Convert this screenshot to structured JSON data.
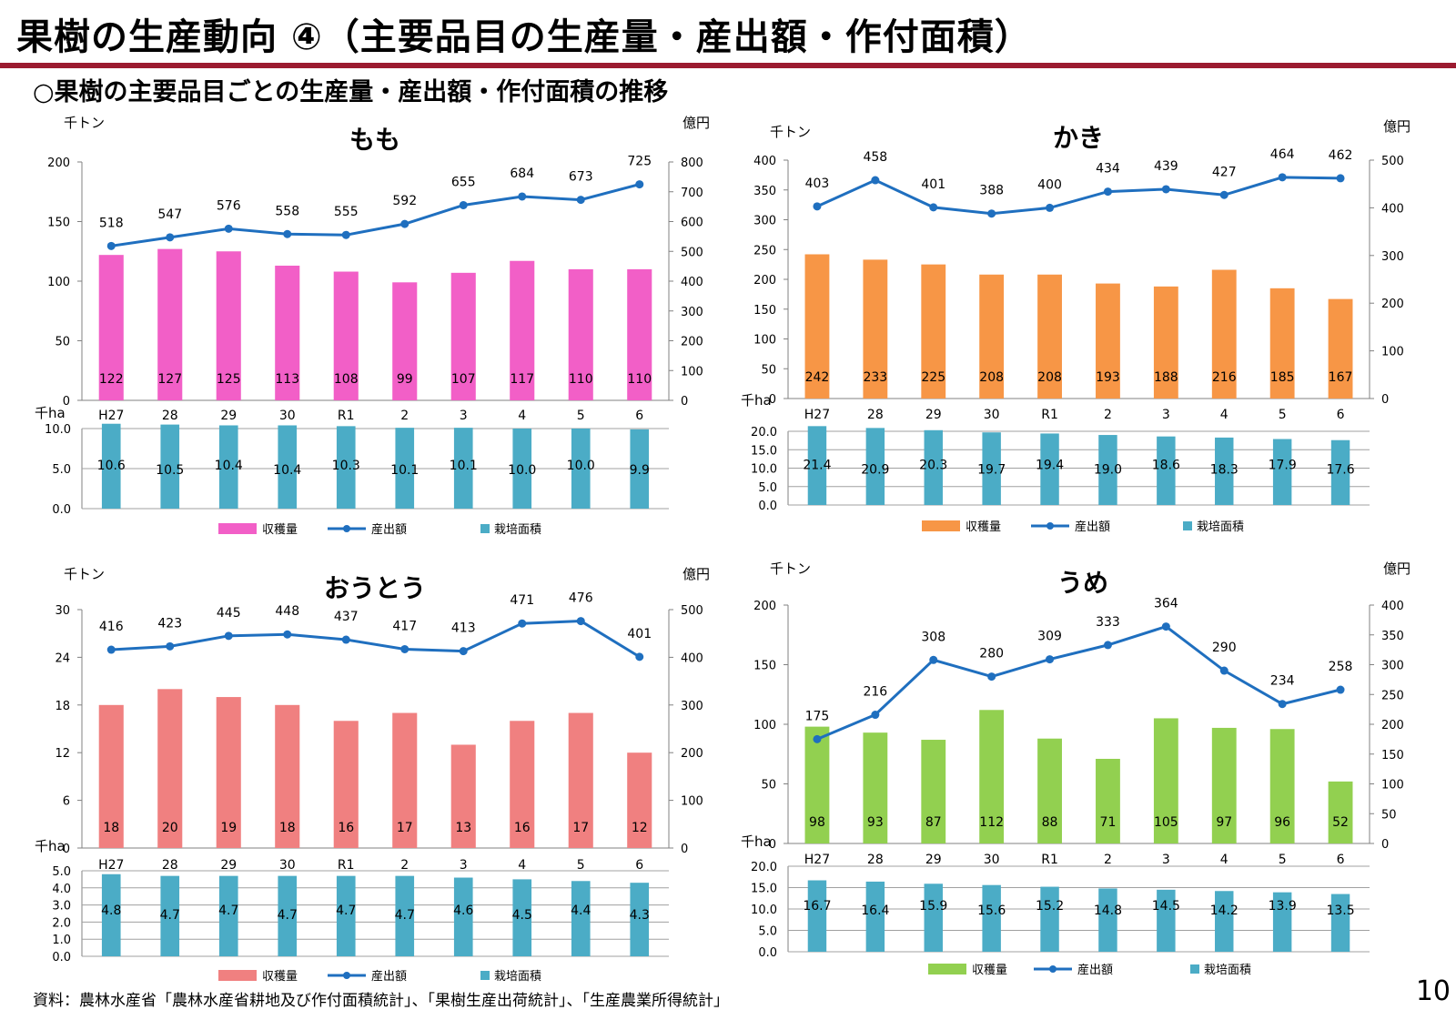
{
  "header": {
    "title": "果樹の生産動向 ④（主要品目の生産量・産出額・作付面積）",
    "subtitle": "○果樹の主要品目ごとの生産量・産出額・作付面積の推移"
  },
  "footer": {
    "source": "資料：農林水産省「農林水産省耕地及び作付面積統計」、「果樹生産出荷統計」、「生産農業所得統計」",
    "page_number": "10"
  },
  "colors": {
    "line": "#1f6fbf",
    "area_bar": "#4bacc6",
    "grid": "#808080",
    "title_rule": "#9b1b30"
  },
  "chart_data": [
    {
      "type": "bar",
      "title": "もも",
      "categories": [
        "H27",
        "28",
        "29",
        "30",
        "R1",
        "2",
        "3",
        "4",
        "5",
        "6"
      ],
      "left_unit": "千トン",
      "right_unit": "億円",
      "area_unit": "千ha",
      "series": [
        {
          "name": "収穫量",
          "axis": "left",
          "color": "#f25fc7",
          "values": [
            122,
            127,
            125,
            113,
            108,
            99,
            107,
            117,
            110,
            110
          ]
        },
        {
          "name": "産出額",
          "axis": "right",
          "color": "#1f6fbf",
          "values": [
            518,
            547,
            576,
            558,
            555,
            592,
            655,
            684,
            673,
            725
          ]
        },
        {
          "name": "栽培面積",
          "axis": "area",
          "color": "#4bacc6",
          "values": [
            10.6,
            10.5,
            10.4,
            10.4,
            10.3,
            10.1,
            10.1,
            10.0,
            10.0,
            9.9
          ]
        }
      ],
      "label_text": {
        "bar": [
          "122",
          "127",
          "125",
          "113",
          "108",
          "99",
          "107",
          "117",
          "110",
          "110"
        ],
        "line": [
          "518",
          "547",
          "576",
          "558",
          "555",
          "592",
          "655",
          "684",
          "673",
          "725"
        ],
        "area": [
          "10.6",
          "10.5",
          "10.4",
          "10.4",
          "10.3",
          "10.1",
          "10.1",
          "10.0",
          "10.0",
          "9.9"
        ]
      },
      "left_axis": {
        "ylim": [
          0,
          200
        ],
        "ticks": [
          "0",
          "50",
          "100",
          "150",
          "200"
        ]
      },
      "right_axis": {
        "ylim": [
          0,
          800
        ],
        "ticks": [
          "0",
          "100",
          "200",
          "300",
          "400",
          "500",
          "600",
          "700",
          "800"
        ]
      },
      "area_axis": {
        "ylim": [
          0,
          10
        ],
        "ticks": [
          "0.0",
          "5.0",
          "10.0"
        ]
      },
      "legend": [
        "収穫量",
        "産出額",
        "栽培面積"
      ]
    },
    {
      "type": "bar",
      "title": "かき",
      "categories": [
        "H27",
        "28",
        "29",
        "30",
        "R1",
        "2",
        "3",
        "4",
        "5",
        "6"
      ],
      "left_unit": "千トン",
      "right_unit": "億円",
      "area_unit": "千ha",
      "series": [
        {
          "name": "収穫量",
          "axis": "left",
          "color": "#f79646",
          "values": [
            242,
            233,
            225,
            208,
            208,
            193,
            188,
            216,
            185,
            167
          ]
        },
        {
          "name": "産出額",
          "axis": "right",
          "color": "#1f6fbf",
          "values": [
            403,
            458,
            401,
            388,
            400,
            434,
            439,
            427,
            464,
            462
          ]
        },
        {
          "name": "栽培面積",
          "axis": "area",
          "color": "#4bacc6",
          "values": [
            21.4,
            20.9,
            20.3,
            19.7,
            19.4,
            19.0,
            18.6,
            18.3,
            17.9,
            17.6
          ]
        }
      ],
      "label_text": {
        "bar": [
          "242",
          "233",
          "225",
          "208",
          "208",
          "193",
          "188",
          "216",
          "185",
          "167"
        ],
        "line": [
          "403",
          "458",
          "401",
          "388",
          "400",
          "434",
          "439",
          "427",
          "464",
          "462"
        ],
        "area": [
          "21.4",
          "20.9",
          "20.3",
          "19.7",
          "19.4",
          "19.0",
          "18.6",
          "18.3",
          "17.9",
          "17.6"
        ]
      },
      "left_axis": {
        "ylim": [
          0,
          400
        ],
        "ticks": [
          "0",
          "50",
          "100",
          "150",
          "200",
          "250",
          "300",
          "350",
          "400"
        ]
      },
      "right_axis": {
        "ylim": [
          0,
          500
        ],
        "ticks": [
          "0",
          "100",
          "200",
          "300",
          "400",
          "500"
        ]
      },
      "area_axis": {
        "ylim": [
          0,
          20
        ],
        "ticks": [
          "0.0",
          "5.0",
          "10.0",
          "15.0",
          "20.0"
        ]
      },
      "legend": [
        "収穫量",
        "産出額",
        "栽培面積"
      ]
    },
    {
      "type": "bar",
      "title": "おうとう",
      "categories": [
        "H27",
        "28",
        "29",
        "30",
        "R1",
        "2",
        "3",
        "4",
        "5",
        "6"
      ],
      "left_unit": "千トン",
      "right_unit": "億円",
      "area_unit": "千ha",
      "series": [
        {
          "name": "収穫量",
          "axis": "left",
          "color": "#f08080",
          "values": [
            18,
            20,
            19,
            18,
            16,
            17,
            13,
            16,
            17,
            12
          ]
        },
        {
          "name": "産出額",
          "axis": "right",
          "color": "#1f6fbf",
          "values": [
            416,
            423,
            445,
            448,
            437,
            417,
            413,
            471,
            476,
            401
          ]
        },
        {
          "name": "栽培面積",
          "axis": "area",
          "color": "#4bacc6",
          "values": [
            4.8,
            4.7,
            4.7,
            4.7,
            4.7,
            4.7,
            4.6,
            4.5,
            4.4,
            4.3
          ]
        }
      ],
      "label_text": {
        "bar": [
          "18",
          "20",
          "19",
          "18",
          "16",
          "17",
          "13",
          "16",
          "17",
          "12"
        ],
        "line": [
          "416",
          "423",
          "445",
          "448",
          "437",
          "417",
          "413",
          "471",
          "476",
          "401"
        ],
        "area": [
          "4.8",
          "4.7",
          "4.7",
          "4.7",
          "4.7",
          "4.7",
          "4.6",
          "4.5",
          "4.4",
          "4.3"
        ]
      },
      "left_axis": {
        "ylim": [
          0,
          30
        ],
        "ticks": [
          "0",
          "6",
          "12",
          "18",
          "24",
          "30"
        ]
      },
      "right_axis": {
        "ylim": [
          0,
          500
        ],
        "ticks": [
          "0",
          "100",
          "200",
          "300",
          "400",
          "500"
        ]
      },
      "area_axis": {
        "ylim": [
          0,
          5
        ],
        "ticks": [
          "0.0",
          "1.0",
          "2.0",
          "3.0",
          "4.0",
          "5.0"
        ]
      },
      "legend": [
        "収穫量",
        "産出額",
        "栽培面積"
      ]
    },
    {
      "type": "bar",
      "title": "うめ",
      "categories": [
        "H27",
        "28",
        "29",
        "30",
        "R1",
        "2",
        "3",
        "4",
        "5",
        "6"
      ],
      "left_unit": "千トン",
      "right_unit": "億円",
      "area_unit": "千ha",
      "series": [
        {
          "name": "収穫量",
          "axis": "left",
          "color": "#92d050",
          "values": [
            98,
            93,
            87,
            112,
            88,
            71,
            105,
            97,
            96,
            52
          ]
        },
        {
          "name": "産出額",
          "axis": "right",
          "color": "#1f6fbf",
          "values": [
            175,
            216,
            308,
            280,
            309,
            333,
            364,
            290,
            234,
            258
          ]
        },
        {
          "name": "栽培面積",
          "axis": "area",
          "color": "#4bacc6",
          "values": [
            16.7,
            16.4,
            15.9,
            15.6,
            15.2,
            14.8,
            14.5,
            14.2,
            13.9,
            13.5
          ]
        }
      ],
      "label_text": {
        "bar": [
          "98",
          "93",
          "87",
          "112",
          "88",
          "71",
          "105",
          "97",
          "96",
          "52"
        ],
        "line": [
          "175",
          "216",
          "308",
          "280",
          "309",
          "333",
          "364",
          "290",
          "234",
          "258"
        ],
        "area": [
          "16.7",
          "16.4",
          "15.9",
          "15.6",
          "15.2",
          "14.8",
          "14.5",
          "14.2",
          "13.9",
          "13.5"
        ]
      },
      "left_axis": {
        "ylim": [
          0,
          200
        ],
        "ticks": [
          "0",
          "50",
          "100",
          "150",
          "200"
        ]
      },
      "right_axis": {
        "ylim": [
          0,
          400
        ],
        "ticks": [
          "0",
          "50",
          "100",
          "150",
          "200",
          "250",
          "300",
          "350",
          "400"
        ]
      },
      "area_axis": {
        "ylim": [
          0,
          20
        ],
        "ticks": [
          "0.0",
          "5.0",
          "10.0",
          "15.0",
          "20.0"
        ]
      },
      "legend": [
        "収穫量",
        "産出額",
        "栽培面積"
      ]
    }
  ]
}
